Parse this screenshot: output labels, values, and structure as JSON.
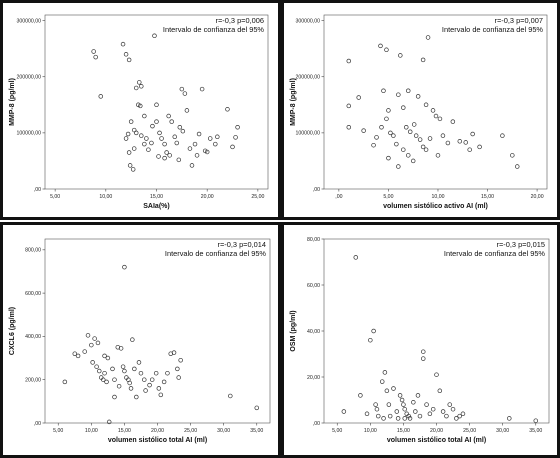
{
  "chart_data": [
    {
      "type": "scatter",
      "title": "",
      "xlabel": "SAIa(%)",
      "ylabel": "MMP-8 (pg/ml)",
      "annotation": [
        "r=-0,3  p=0,006",
        "Intervalo de confianza del 95%"
      ],
      "xlim": [
        4,
        26
      ],
      "ylim": [
        0,
        310000
      ],
      "xticks": [
        5,
        10,
        15,
        20,
        25
      ],
      "xtick_labels": [
        "5,00",
        "10,00",
        "15,00",
        "20,00",
        "25,00"
      ],
      "yticks": [
        0,
        100000,
        200000,
        300000
      ],
      "ytick_labels": [
        ",00",
        "100000,00",
        "200000,00",
        "300000,00"
      ],
      "grid": false,
      "points": [
        [
          8.8,
          245000
        ],
        [
          9.0,
          235000
        ],
        [
          9.5,
          165000
        ],
        [
          11.7,
          258000
        ],
        [
          12.0,
          240000
        ],
        [
          12.3,
          230000
        ],
        [
          14.8,
          273000
        ],
        [
          13.3,
          190000
        ],
        [
          13.5,
          183000
        ],
        [
          13.0,
          180000
        ],
        [
          13.2,
          150000
        ],
        [
          13.4,
          148000
        ],
        [
          12.5,
          120000
        ],
        [
          12.8,
          105000
        ],
        [
          13.0,
          100000
        ],
        [
          12.2,
          98000
        ],
        [
          12.0,
          90000
        ],
        [
          12.3,
          65000
        ],
        [
          12.8,
          72000
        ],
        [
          12.4,
          42000
        ],
        [
          12.7,
          35000
        ],
        [
          13.5,
          95000
        ],
        [
          14.0,
          90000
        ],
        [
          13.8,
          80000
        ],
        [
          14.2,
          70000
        ],
        [
          14.5,
          82000
        ],
        [
          15.0,
          120000
        ],
        [
          15.0,
          150000
        ],
        [
          15.3,
          100000
        ],
        [
          15.5,
          90000
        ],
        [
          15.8,
          80000
        ],
        [
          15.2,
          58000
        ],
        [
          15.8,
          55000
        ],
        [
          16.2,
          130000
        ],
        [
          16.5,
          120000
        ],
        [
          16.3,
          60000
        ],
        [
          16.8,
          93000
        ],
        [
          17.2,
          52000
        ],
        [
          17.5,
          178000
        ],
        [
          17.8,
          170000
        ],
        [
          17.3,
          110000
        ],
        [
          17.6,
          103000
        ],
        [
          18.0,
          140000
        ],
        [
          18.3,
          72000
        ],
        [
          18.8,
          80000
        ],
        [
          18.5,
          42000
        ],
        [
          19.0,
          60000
        ],
        [
          19.2,
          98000
        ],
        [
          19.5,
          178000
        ],
        [
          19.8,
          68000
        ],
        [
          20.0,
          66000
        ],
        [
          20.3,
          90000
        ],
        [
          20.8,
          80000
        ],
        [
          21.0,
          93000
        ],
        [
          22.0,
          142000
        ],
        [
          22.5,
          75000
        ],
        [
          22.8,
          92000
        ],
        [
          23.0,
          110000
        ],
        [
          13.8,
          130000
        ],
        [
          14.6,
          112000
        ],
        [
          16.0,
          65000
        ],
        [
          17.0,
          82000
        ]
      ]
    },
    {
      "type": "scatter",
      "title": "",
      "xlabel": "volumen sistólico activo AI (ml)",
      "ylabel": "MMP-8 (pg/ml)",
      "annotation": [
        "r=-0,3  p=0,007",
        "Intervalo de confianza del 95%"
      ],
      "xlim": [
        -1.5,
        21
      ],
      "ylim": [
        0,
        310000
      ],
      "xticks": [
        0,
        5,
        10,
        15,
        20
      ],
      "xtick_labels": [
        ",00",
        "5,00",
        "10,00",
        "15,00",
        "20,00"
      ],
      "yticks": [
        0,
        100000,
        200000,
        300000
      ],
      "ytick_labels": [
        ",00",
        "100000,00",
        "200000,00",
        "300000,00"
      ],
      "grid": false,
      "points": [
        [
          1.0,
          228000
        ],
        [
          2.0,
          163000
        ],
        [
          1.0,
          148000
        ],
        [
          1.0,
          110000
        ],
        [
          2.5,
          104000
        ],
        [
          3.5,
          78000
        ],
        [
          4.2,
          255000
        ],
        [
          4.8,
          248000
        ],
        [
          6.2,
          238000
        ],
        [
          8.5,
          230000
        ],
        [
          9.0,
          270000
        ],
        [
          4.5,
          175000
        ],
        [
          5.0,
          140000
        ],
        [
          4.8,
          125000
        ],
        [
          6.0,
          168000
        ],
        [
          6.5,
          145000
        ],
        [
          7.0,
          175000
        ],
        [
          8.0,
          165000
        ],
        [
          8.8,
          150000
        ],
        [
          9.5,
          140000
        ],
        [
          5.2,
          100000
        ],
        [
          5.5,
          95000
        ],
        [
          6.8,
          110000
        ],
        [
          7.2,
          102000
        ],
        [
          7.8,
          95000
        ],
        [
          8.2,
          88000
        ],
        [
          8.5,
          75000
        ],
        [
          9.2,
          90000
        ],
        [
          9.8,
          130000
        ],
        [
          10.2,
          125000
        ],
        [
          10.5,
          95000
        ],
        [
          5.8,
          80000
        ],
        [
          6.5,
          70000
        ],
        [
          7.0,
          60000
        ],
        [
          7.5,
          50000
        ],
        [
          5.0,
          55000
        ],
        [
          6.0,
          40000
        ],
        [
          8.8,
          70000
        ],
        [
          11.5,
          120000
        ],
        [
          12.2,
          85000
        ],
        [
          12.8,
          83000
        ],
        [
          13.5,
          98000
        ],
        [
          13.2,
          70000
        ],
        [
          14.2,
          75000
        ],
        [
          16.5,
          95000
        ],
        [
          17.5,
          60000
        ],
        [
          18.0,
          40000
        ],
        [
          11.0,
          82000
        ],
        [
          10.0,
          60000
        ],
        [
          3.8,
          92000
        ],
        [
          4.3,
          110000
        ],
        [
          7.6,
          115000
        ]
      ]
    },
    {
      "type": "scatter",
      "title": "",
      "xlabel": "volumen sistólico total AI (ml)",
      "ylabel": "CXCL6 (pg/ml)",
      "annotation": [
        "r=-0,3  p=0,014",
        "Intervalo de confianza del 95%"
      ],
      "xlim": [
        3,
        37
      ],
      "ylim": [
        0,
        850
      ],
      "xticks": [
        5,
        10,
        15,
        20,
        25,
        30,
        35
      ],
      "xtick_labels": [
        "5,00",
        "10,00",
        "15,00",
        "20,00",
        "25,00",
        "30,00",
        "35,00"
      ],
      "yticks": [
        0,
        200,
        400,
        600,
        800
      ],
      "ytick_labels": [
        ",00",
        "200,00",
        "400,00",
        "600,00",
        "800,00"
      ],
      "grid": false,
      "points": [
        [
          6.0,
          190
        ],
        [
          7.5,
          320
        ],
        [
          8.0,
          310
        ],
        [
          9.0,
          330
        ],
        [
          9.5,
          405
        ],
        [
          10.5,
          390
        ],
        [
          10.0,
          360
        ],
        [
          11.0,
          370
        ],
        [
          10.2,
          280
        ],
        [
          10.8,
          260
        ],
        [
          11.2,
          240
        ],
        [
          11.5,
          210
        ],
        [
          11.8,
          200
        ],
        [
          12.0,
          310
        ],
        [
          12.5,
          300
        ],
        [
          12.0,
          230
        ],
        [
          12.3,
          190
        ],
        [
          12.7,
          5
        ],
        [
          13.2,
          250
        ],
        [
          13.5,
          200
        ],
        [
          14.0,
          350
        ],
        [
          14.5,
          345
        ],
        [
          14.8,
          260
        ],
        [
          15.0,
          240
        ],
        [
          15.0,
          720
        ],
        [
          15.3,
          210
        ],
        [
          15.6,
          200
        ],
        [
          15.8,
          185
        ],
        [
          16.2,
          385
        ],
        [
          16.5,
          250
        ],
        [
          16.0,
          160
        ],
        [
          16.8,
          120
        ],
        [
          17.2,
          280
        ],
        [
          17.5,
          230
        ],
        [
          18.0,
          200
        ],
        [
          18.2,
          150
        ],
        [
          18.8,
          175
        ],
        [
          19.2,
          200
        ],
        [
          19.8,
          230
        ],
        [
          20.2,
          160
        ],
        [
          20.5,
          130
        ],
        [
          21.0,
          190
        ],
        [
          21.5,
          230
        ],
        [
          22.0,
          320
        ],
        [
          22.5,
          325
        ],
        [
          23.0,
          250
        ],
        [
          23.2,
          210
        ],
        [
          23.5,
          290
        ],
        [
          13.5,
          120
        ],
        [
          14.2,
          170
        ],
        [
          31.0,
          125
        ],
        [
          35.0,
          70
        ]
      ]
    },
    {
      "type": "scatter",
      "title": "",
      "xlabel": "volumen sistólico total AI (ml)",
      "ylabel": "OSM (pg/ml)",
      "annotation": [
        "r=-0,3  p=0,015",
        "Intervalo de confianza del 95%"
      ],
      "xlim": [
        3,
        37
      ],
      "ylim": [
        0,
        80
      ],
      "xticks": [
        5,
        10,
        15,
        20,
        25,
        30,
        35
      ],
      "xtick_labels": [
        "5,00",
        "10,00",
        "15,00",
        "20,00",
        "25,00",
        "30,00",
        "35,00"
      ],
      "yticks": [
        0,
        20,
        40,
        60,
        80
      ],
      "ytick_labels": [
        ",00",
        "20,00",
        "40,00",
        "60,00",
        "80,00"
      ],
      "grid": false,
      "points": [
        [
          6.0,
          5
        ],
        [
          7.8,
          72
        ],
        [
          8.5,
          12
        ],
        [
          9.5,
          4
        ],
        [
          10.0,
          36
        ],
        [
          10.5,
          40
        ],
        [
          11.0,
          6
        ],
        [
          11.2,
          3
        ],
        [
          11.8,
          18
        ],
        [
          12.2,
          22
        ],
        [
          12.5,
          14
        ],
        [
          12.8,
          8
        ],
        [
          13.0,
          3
        ],
        [
          13.5,
          15
        ],
        [
          14.0,
          5
        ],
        [
          14.5,
          12
        ],
        [
          14.8,
          10
        ],
        [
          15.0,
          8
        ],
        [
          15.2,
          6
        ],
        [
          15.5,
          4
        ],
        [
          15.8,
          3
        ],
        [
          16.0,
          2
        ],
        [
          16.5,
          9
        ],
        [
          16.8,
          5
        ],
        [
          17.2,
          12
        ],
        [
          17.5,
          3
        ],
        [
          18.0,
          31
        ],
        [
          18.0,
          28
        ],
        [
          18.5,
          8
        ],
        [
          19.0,
          4
        ],
        [
          19.5,
          6
        ],
        [
          20.0,
          21
        ],
        [
          20.5,
          14
        ],
        [
          21.0,
          5
        ],
        [
          21.5,
          3
        ],
        [
          22.0,
          8
        ],
        [
          22.5,
          6
        ],
        [
          23.0,
          2
        ],
        [
          23.5,
          3
        ],
        [
          24.0,
          4
        ],
        [
          10.8,
          8
        ],
        [
          12.0,
          2
        ],
        [
          14.2,
          2
        ],
        [
          15.2,
          2
        ],
        [
          31.0,
          2
        ],
        [
          35.0,
          1
        ]
      ]
    }
  ]
}
